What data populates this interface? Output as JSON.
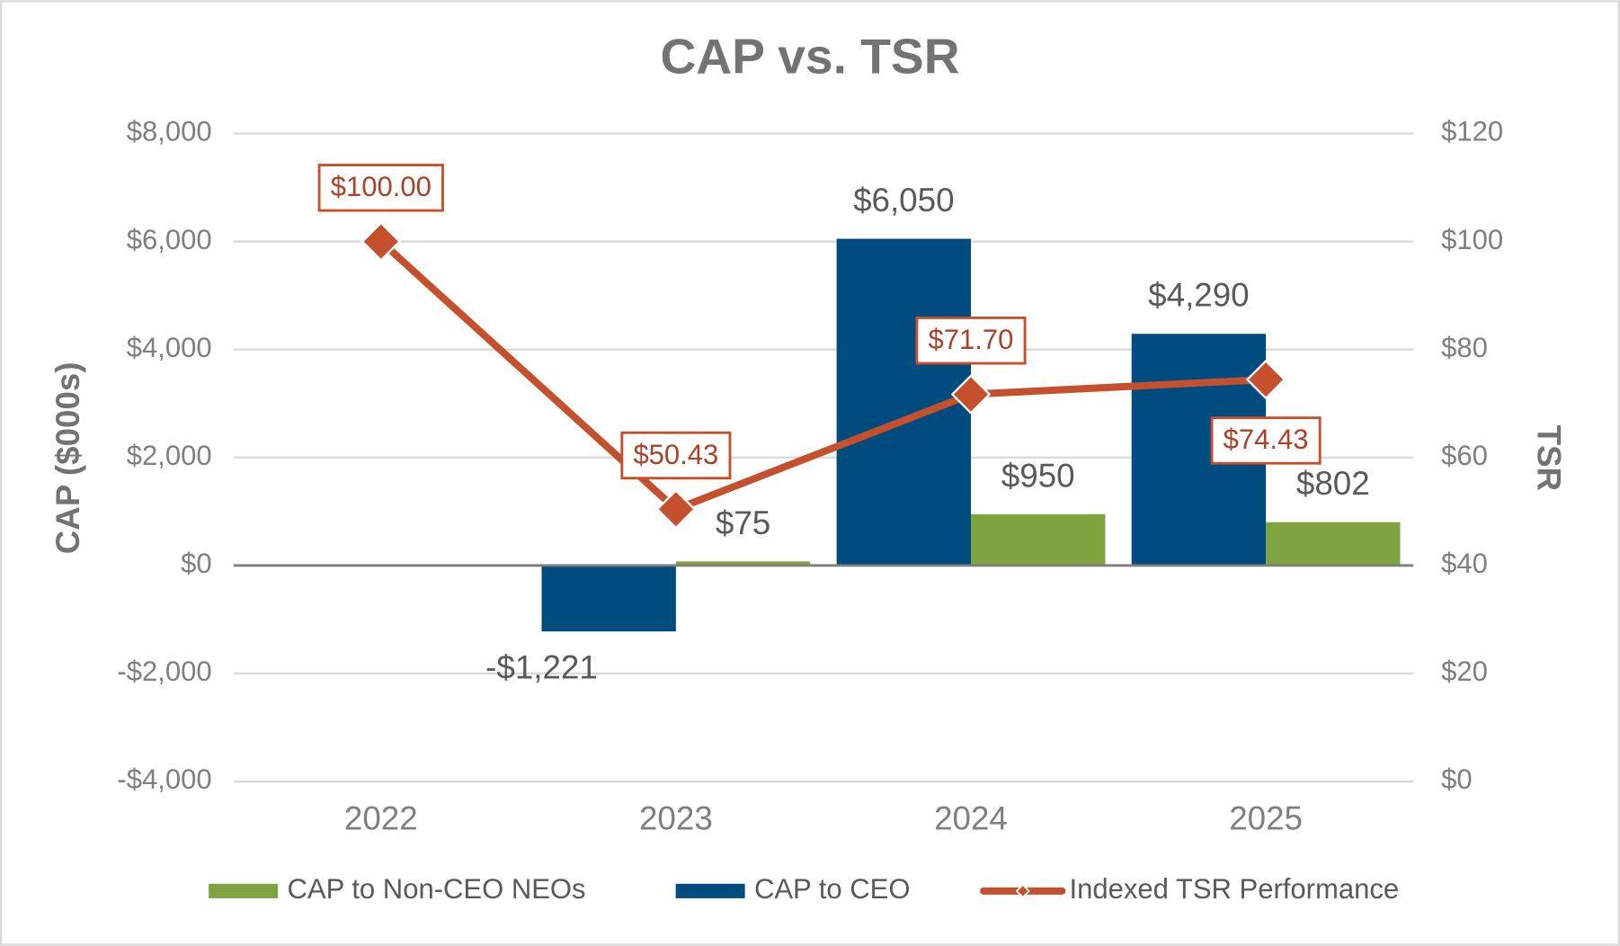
{
  "chart_data": {
    "type": "bar",
    "title": "CAP vs. TSR",
    "y_label": "CAP ($000s)",
    "y2_label": "TSR",
    "categories": [
      "2022",
      "2023",
      "2024",
      "2025"
    ],
    "series": [
      {
        "name": "CAP to CEO",
        "type": "bar",
        "color": "#004c7f",
        "values": [
          null,
          -1221,
          6050,
          4290
        ],
        "value_labels": [
          null,
          "-$1,221",
          "$6,050",
          "$4,290"
        ]
      },
      {
        "name": "CAP to Non-CEO NEOs",
        "type": "bar",
        "color": "#7fa33e",
        "values": [
          null,
          75,
          950,
          802
        ],
        "value_labels": [
          null,
          "$75",
          "$950",
          "$802"
        ]
      },
      {
        "name": "Indexed TSR Performance",
        "type": "line",
        "axis": "y2",
        "color": "#c5502e",
        "values": [
          100,
          50.43,
          71.7,
          74.43
        ],
        "value_labels": [
          "$100.00",
          "$50.43",
          "$71.70",
          "$74.43"
        ]
      }
    ],
    "ylim": [
      -4000,
      8000
    ],
    "yticks": [
      {
        "value": -4000,
        "label": "-$4,000"
      },
      {
        "value": -2000,
        "label": "-$2,000"
      },
      {
        "value": 0,
        "label": "$0"
      },
      {
        "value": 2000,
        "label": "$2,000"
      },
      {
        "value": 4000,
        "label": "$4,000"
      },
      {
        "value": 6000,
        "label": "$6,000"
      },
      {
        "value": 8000,
        "label": "$8,000"
      }
    ],
    "y2lim": [
      0,
      120
    ],
    "y2ticks": [
      {
        "value": 0,
        "label": "$0"
      },
      {
        "value": 20,
        "label": "$20"
      },
      {
        "value": 40,
        "label": "$40"
      },
      {
        "value": 60,
        "label": "$60"
      },
      {
        "value": 80,
        "label": "$80"
      },
      {
        "value": 100,
        "label": "$100"
      },
      {
        "value": 120,
        "label": "$120"
      }
    ],
    "grid": true,
    "legend": "bottom"
  }
}
